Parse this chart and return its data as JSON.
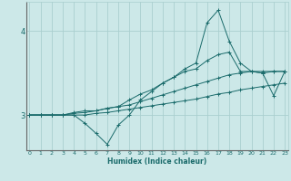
{
  "xlabel": "Humidex (Indice chaleur)",
  "bg_color": "#cce8e8",
  "grid_color": "#aacfcf",
  "line_color": "#1a6b6b",
  "x_ticks": [
    0,
    1,
    2,
    3,
    4,
    5,
    6,
    7,
    8,
    9,
    10,
    11,
    12,
    13,
    14,
    15,
    16,
    17,
    18,
    19,
    20,
    21,
    22,
    23
  ],
  "ylim": [
    2.58,
    4.35
  ],
  "xlim": [
    -0.3,
    23.3
  ],
  "yticks": [
    3,
    4
  ],
  "series": [
    [
      3.0,
      3.0,
      3.0,
      3.0,
      3.0,
      2.9,
      2.78,
      2.65,
      2.88,
      3.0,
      3.18,
      3.28,
      3.38,
      3.45,
      3.55,
      3.62,
      4.1,
      4.25,
      3.88,
      3.62,
      3.52,
      3.5,
      3.23,
      3.52
    ],
    [
      3.0,
      3.0,
      3.0,
      3.0,
      3.03,
      3.05,
      3.05,
      3.08,
      3.1,
      3.18,
      3.25,
      3.3,
      3.38,
      3.45,
      3.52,
      3.55,
      3.65,
      3.72,
      3.75,
      3.52,
      3.52,
      3.5,
      3.52,
      3.52
    ],
    [
      3.0,
      3.0,
      3.0,
      3.0,
      3.02,
      3.03,
      3.05,
      3.08,
      3.1,
      3.12,
      3.16,
      3.2,
      3.24,
      3.28,
      3.32,
      3.36,
      3.4,
      3.44,
      3.48,
      3.5,
      3.52,
      3.52,
      3.52,
      3.52
    ],
    [
      3.0,
      3.0,
      3.0,
      3.0,
      3.0,
      3.0,
      3.02,
      3.03,
      3.05,
      3.07,
      3.09,
      3.11,
      3.13,
      3.15,
      3.17,
      3.19,
      3.22,
      3.25,
      3.27,
      3.3,
      3.32,
      3.34,
      3.36,
      3.38
    ]
  ]
}
